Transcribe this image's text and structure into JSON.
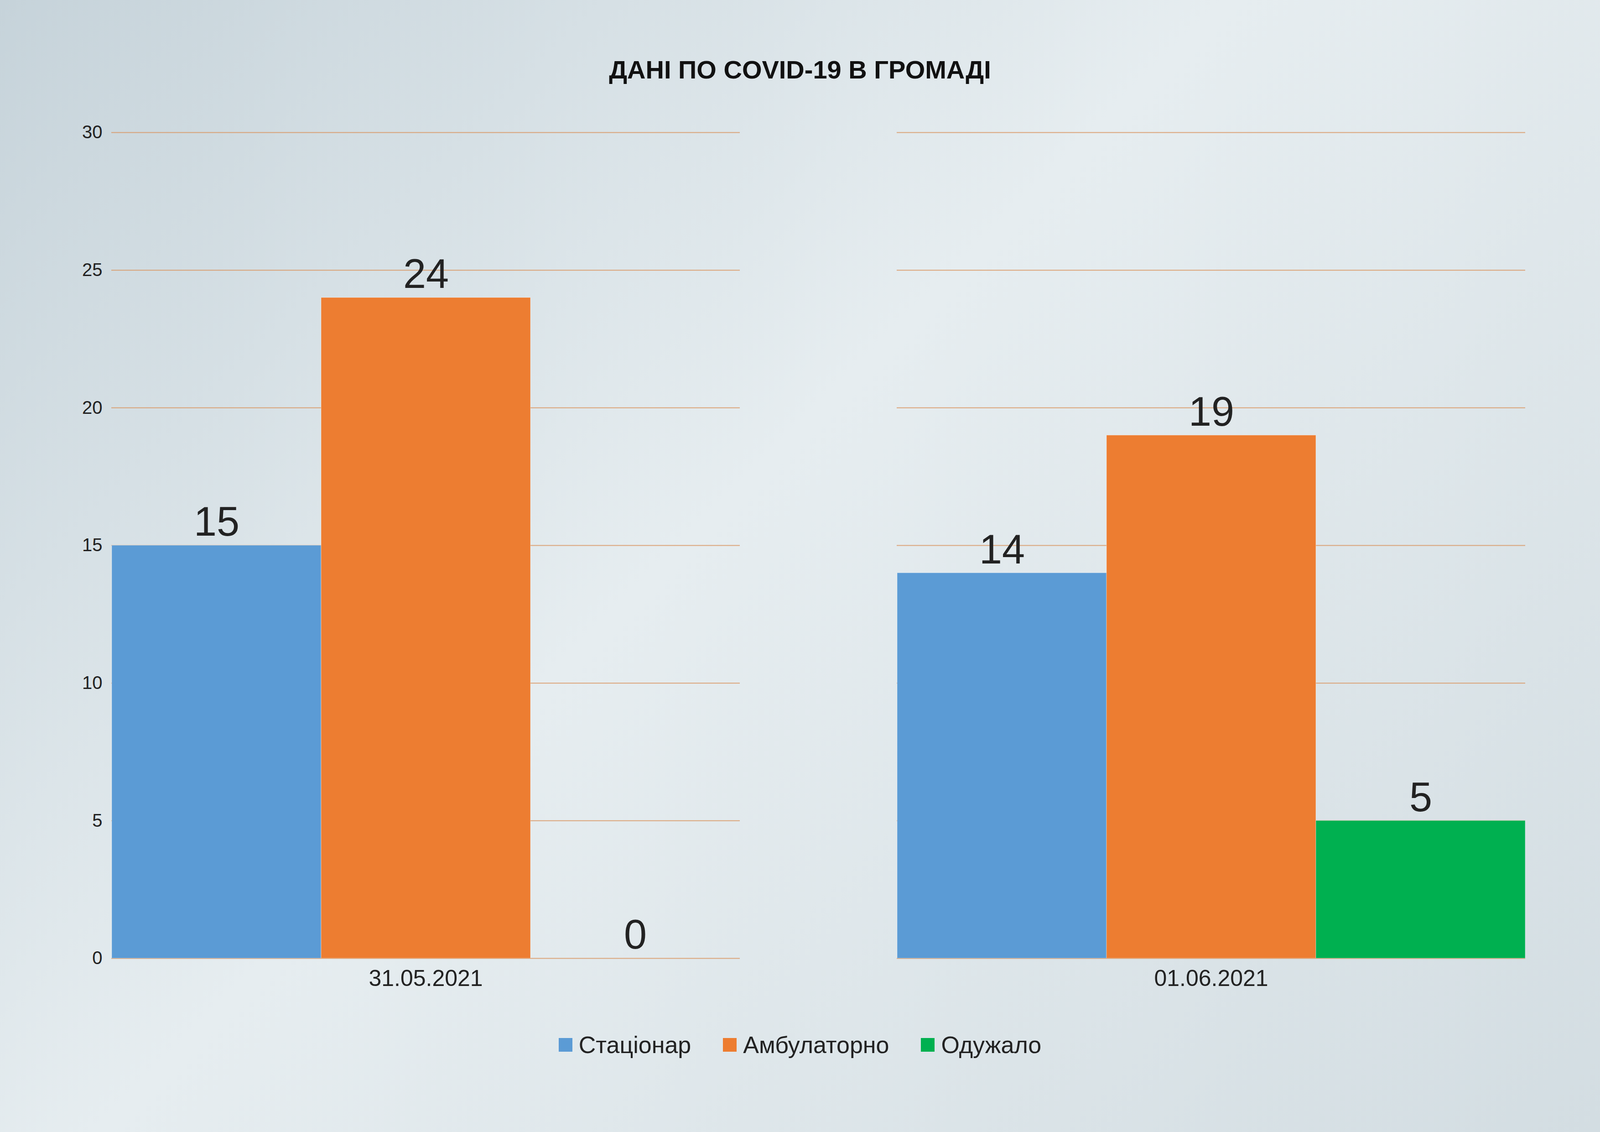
{
  "chart_data": {
    "type": "bar",
    "title": "ДАНІ ПО COVID-19 В ГРОМАДІ",
    "categories": [
      "31.05.2021",
      "01.06.2021"
    ],
    "series": [
      {
        "name": "Стаціонар",
        "color": "#5b9bd5",
        "values": [
          15,
          14
        ]
      },
      {
        "name": "Амбулаторно",
        "color": "#ed7d31",
        "values": [
          24,
          19
        ]
      },
      {
        "name": "Одужало",
        "color": "#00b050",
        "values": [
          0,
          5
        ]
      }
    ],
    "ylim": [
      0,
      30
    ],
    "yticks": [
      0,
      5,
      10,
      15,
      20,
      25,
      30
    ],
    "grid": true,
    "legend": "bottom",
    "data_labels": true
  }
}
